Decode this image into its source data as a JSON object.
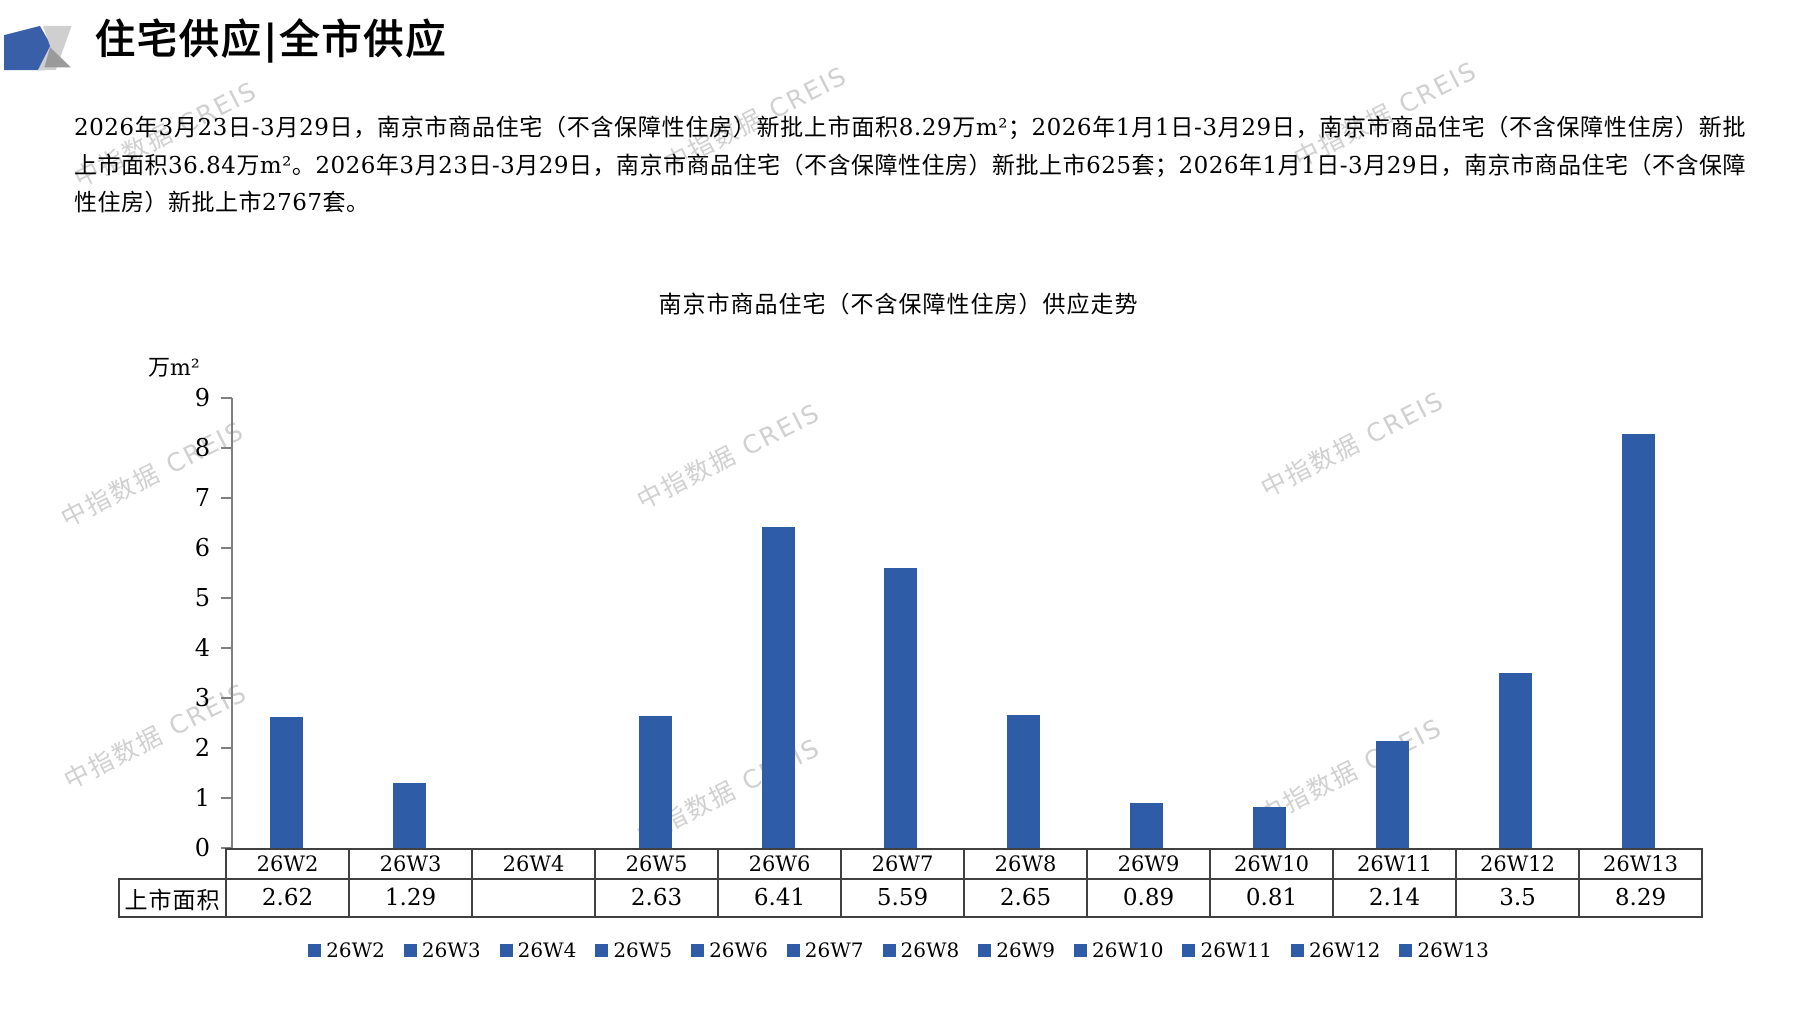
{
  "header": {
    "title": "住宅供应|全市供应"
  },
  "summary": "2026年3月23日-3月29日，南京市商品住宅（不含保障性住房）新批上市面积8.29万m²；2026年1月1日-3月29日，南京市商品住宅（不含保障性住房）新批上市面积36.84万m²。2026年3月23日-3月29日，南京市商品住宅（不含保障性住房）新批上市625套；2026年1月1日-3月29日，南京市商品住宅（不含保障性住房）新批上市2767套。",
  "watermark": {
    "text": "中指数据 CREIS",
    "color": "#c5c5c5"
  },
  "chart_data": {
    "type": "bar",
    "title": "南京市商品住宅（不含保障性住房）供应走势",
    "unit_label": "万m²",
    "row_header": "上市面积",
    "categories": [
      "26W2",
      "26W3",
      "26W4",
      "26W5",
      "26W6",
      "26W7",
      "26W8",
      "26W9",
      "26W10",
      "26W11",
      "26W12",
      "26W13"
    ],
    "values": [
      2.62,
      1.29,
      null,
      2.63,
      6.41,
      5.59,
      2.65,
      0.89,
      0.81,
      2.14,
      3.5,
      8.29
    ],
    "value_labels": [
      "2.62",
      "1.29",
      "",
      "2.63",
      "6.41",
      "5.59",
      "2.65",
      "0.89",
      "0.81",
      "2.14",
      "3.5",
      "8.29"
    ],
    "ylim": [
      0,
      9
    ],
    "ytick_step": 1,
    "bar_color": "#2e5ca6",
    "grid": false,
    "legend_position": "bottom"
  }
}
